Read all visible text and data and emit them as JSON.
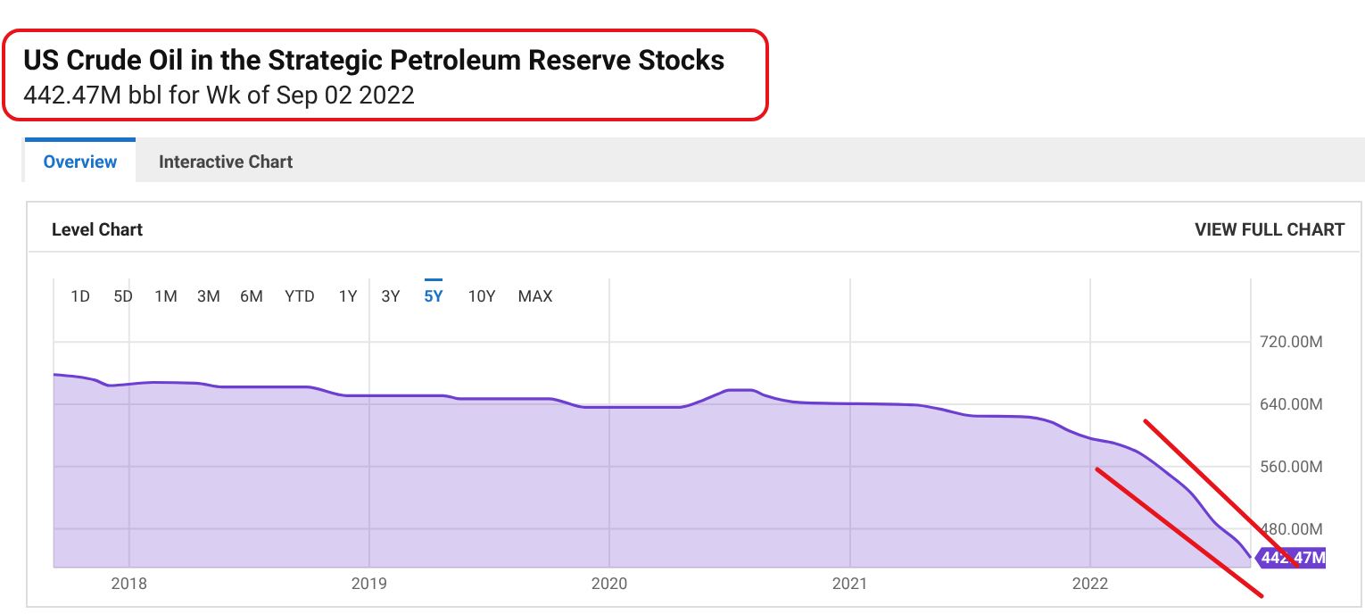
{
  "chart_data": {
    "type": "area",
    "title": "US Crude Oil in the Strategic Petroleum Reserve Stocks",
    "subtitle": "442.47M bbl for Wk of Sep 02 2022",
    "annotations": [
      "Overview",
      "Interactive Chart",
      "Level Chart",
      "VIEW FULL CHART",
      "1D",
      "5D",
      "1M",
      "3M",
      "6M",
      "YTD",
      "1Y",
      "3Y",
      "5Y",
      "10Y",
      "MAX",
      {
        "text": "442.47M",
        "x": "2022-09-02",
        "y": 442.47
      }
    ],
    "x": [
      "2017-09-08",
      "2017-11-10",
      "2017-12-02",
      "2018-02-06",
      "2018-04-13",
      "2018-05-23",
      "2018-09-27",
      "2018-11-28",
      "2019-04-23",
      "2019-05-19",
      "2019-10-01",
      "2019-11-25",
      "2020-04-16",
      "2020-05-19",
      "2020-06-14",
      "2020-07-01",
      "2020-08-03",
      "2020-08-25",
      "2020-10-19",
      "2021-04-09",
      "2021-05-16",
      "2021-07-06",
      "2021-09-17",
      "2021-11-03",
      "2021-11-29",
      "2022-01-01",
      "2022-02-06",
      "2022-03-15",
      "2022-04-27",
      "2022-06-03",
      "2022-07-09",
      "2022-08-18",
      "2022-09-02"
    ],
    "series": [
      {
        "color": "#6c3fd1",
        "values": [
          678,
          671,
          664,
          668,
          667,
          662,
          662,
          651,
          651,
          647,
          647,
          636,
          636,
          644,
          653,
          658,
          658,
          651,
          642,
          639,
          634,
          625,
          624,
          617,
          606,
          596,
          590,
          578,
          552,
          526,
          488,
          459,
          442.47
        ]
      }
    ],
    "xlim": [
      "2017-09-08",
      "2022-09-02"
    ],
    "ylim": [
      430,
      800
    ],
    "xticks": [
      {
        "value": "2018-01-01",
        "label": "2018"
      },
      {
        "value": "2019-01-01",
        "label": "2019"
      },
      {
        "value": "2020-01-01",
        "label": "2020"
      },
      {
        "value": "2021-01-01",
        "label": "2021"
      },
      {
        "value": "2022-01-01",
        "label": "2022"
      }
    ],
    "yticks": [
      {
        "value": 480,
        "label": "480.00M"
      },
      {
        "value": 560,
        "label": "560.00M"
      },
      {
        "value": 640,
        "label": "640.00M"
      },
      {
        "value": 720,
        "label": "720.00M"
      }
    ],
    "grid": true
  }
}
